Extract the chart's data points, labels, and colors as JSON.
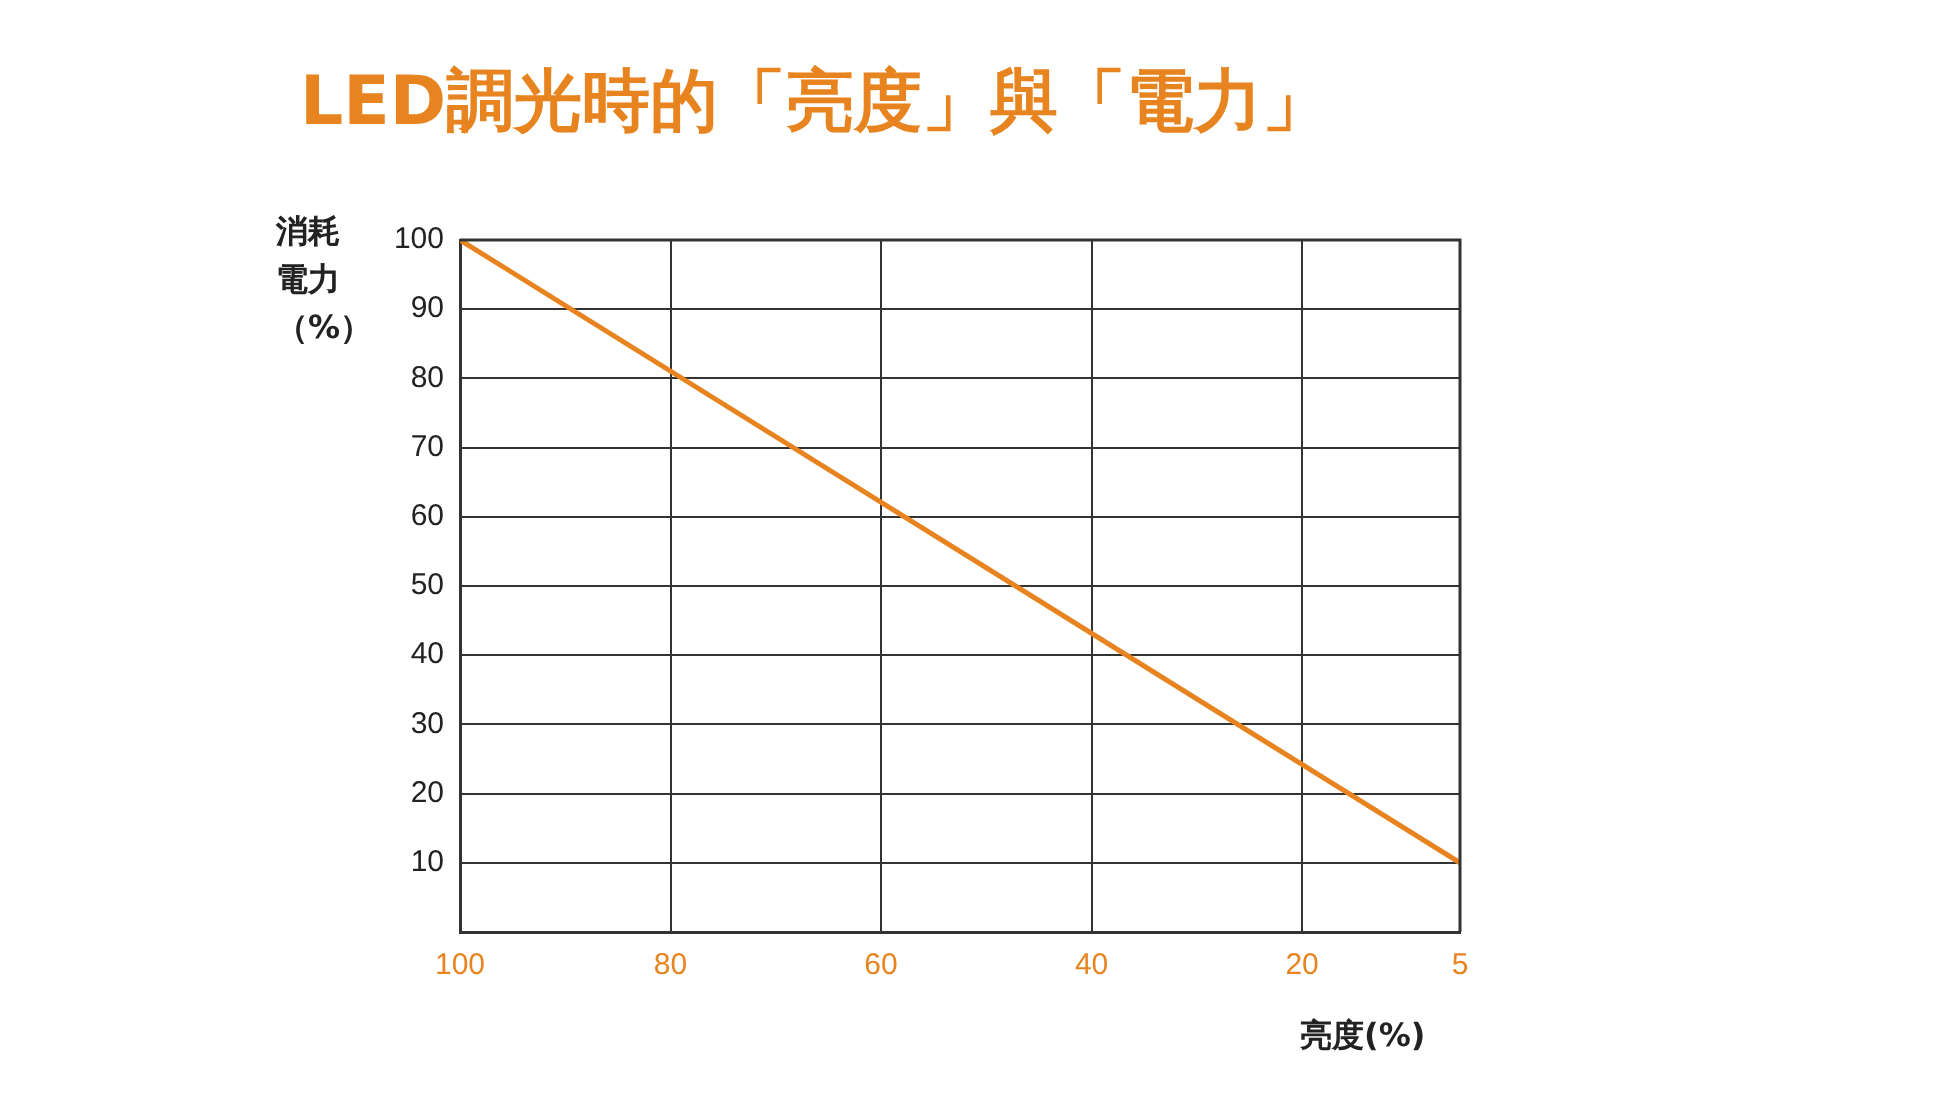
{
  "chart_data": {
    "type": "line",
    "title": "LED調光時的「亮度」與「電力」",
    "xlabel": "亮度(%)",
    "ylabel": "消耗電力（%）",
    "x": [
      100,
      5
    ],
    "series": [
      {
        "color": "#e8841f",
        "values": [
          100,
          10
        ]
      }
    ],
    "xlim": [
      100,
      5
    ],
    "xticks": [
      100,
      80,
      60,
      40,
      20,
      5
    ],
    "ylim": [
      0,
      100
    ],
    "yticks": [
      10,
      20,
      30,
      40,
      50,
      60,
      70,
      80,
      90,
      100
    ],
    "grid": true,
    "legend": false,
    "marker": "none",
    "line_style": "solid"
  }
}
